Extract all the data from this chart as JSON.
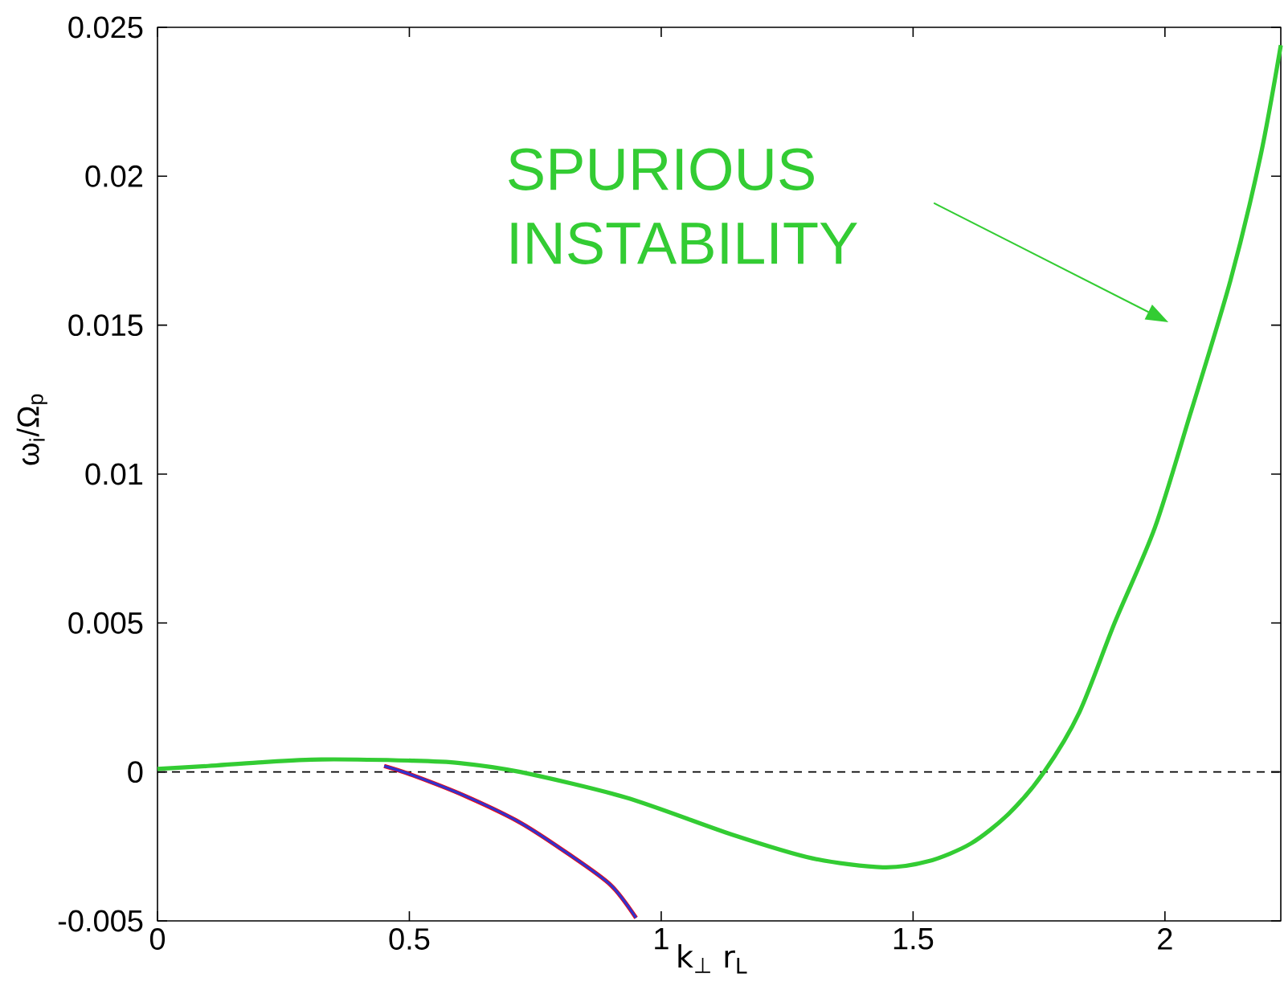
{
  "chart_data": {
    "type": "line",
    "xlabel": "k$_{⊥}$ r$_{L}$",
    "ylabel": "ω$_{i}$/Ω$_{p}$",
    "xlim": [
      0,
      2.23
    ],
    "ylim": [
      -0.005,
      0.025
    ],
    "xticks": [
      0,
      0.5,
      1,
      1.5,
      2
    ],
    "yticks": [
      -0.005,
      0,
      0.005,
      0.01,
      0.015,
      0.02,
      0.025
    ],
    "grid": false,
    "marker": "none",
    "line_style": "solid",
    "series": [
      {
        "color": "#ff0000",
        "x": [
          0.45,
          0.505,
          0.61,
          0.72,
          0.82,
          0.9,
          0.95
        ],
        "values": [
          0.0002,
          -0.0001,
          -0.0008,
          -0.0017,
          -0.0028,
          -0.0038,
          -0.0049
        ]
      },
      {
        "color": "#3333cc",
        "x": [
          0.45,
          0.505,
          0.61,
          0.72,
          0.82,
          0.9,
          0.95
        ],
        "values": [
          0.0002,
          -0.0001,
          -0.0008,
          -0.0017,
          -0.0028,
          -0.0038,
          -0.0049
        ]
      },
      {
        "color": "#33cc33",
        "x": [
          0,
          0.1,
          0.2,
          0.325,
          0.505,
          0.6,
          0.72,
          0.93,
          1.14,
          1.3,
          1.44,
          1.53,
          1.615,
          1.69,
          1.76,
          1.83,
          1.9,
          1.98,
          2.05,
          2.13,
          2.19,
          2.23
        ],
        "values": [
          0.0001,
          0.0002,
          0.00032,
          0.00042,
          0.00038,
          0.0003,
          0,
          -0.00086,
          -0.0021,
          -0.0029,
          -0.0032,
          -0.003,
          -0.0024,
          -0.0014,
          0,
          0.002,
          0.005,
          0.0082,
          0.012,
          0.0165,
          0.0207,
          0.0244
        ]
      }
    ],
    "ref_lines": [
      {
        "axis": "y",
        "value": 0,
        "color": "#000000",
        "line_style": "dashed"
      }
    ],
    "annotations": [
      "SPURIOUS INSTABILITY"
    ]
  }
}
